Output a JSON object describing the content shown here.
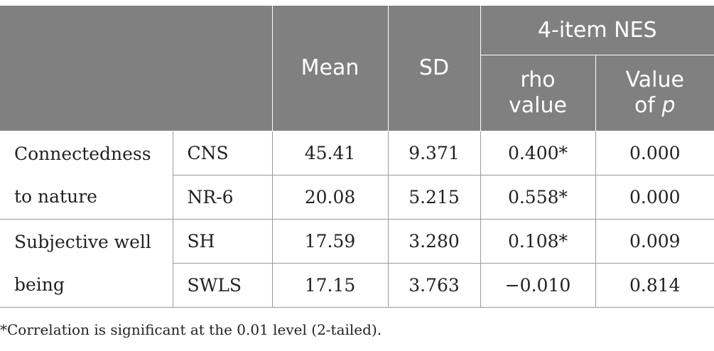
{
  "header": {
    "mean": "Mean",
    "sd": "SD",
    "nes_group": "4-item NES",
    "rho_line1": "rho",
    "rho_line2": "value",
    "p_line1": "Value",
    "p_line2_prefix": "of ",
    "p_line2_var": "p"
  },
  "groups": [
    {
      "label": "Connectedness to nature",
      "rows": [
        {
          "measure": "CNS",
          "mean": "45.41",
          "sd": "9.371",
          "rho": "0.400*",
          "p": "0.000"
        },
        {
          "measure": "NR-6",
          "mean": "20.08",
          "sd": "5.215",
          "rho": "0.558*",
          "p": "0.000"
        }
      ]
    },
    {
      "label": "Subjective well being",
      "rows": [
        {
          "measure": "SH",
          "mean": "17.59",
          "sd": "3.280",
          "rho": "0.108*",
          "p": "0.009"
        },
        {
          "measure": "SWLS",
          "mean": "17.15",
          "sd": "3.763",
          "rho": "−0.010",
          "p": "0.814"
        }
      ]
    }
  ],
  "footnote": "*Correlation is significant at the 0.01 level (2-tailed)."
}
